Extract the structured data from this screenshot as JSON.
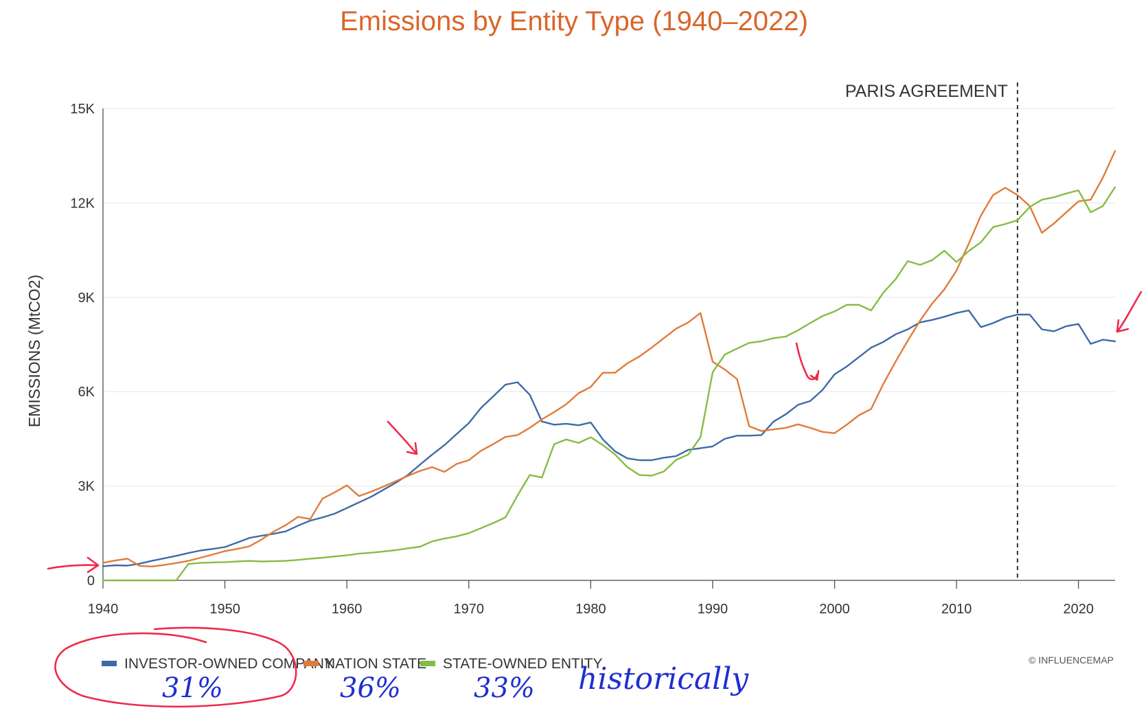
{
  "chart_data": {
    "type": "line",
    "title": "Emissions by Entity Type (1940–2022)",
    "xlabel": "",
    "ylabel": "EMISSIONS (MtCO2)",
    "xlim": [
      1940,
      2023
    ],
    "ylim": [
      0,
      15000
    ],
    "x_ticks": [
      1940,
      1950,
      1960,
      1970,
      1980,
      1990,
      2000,
      2010,
      2020
    ],
    "x_tick_labels": [
      "1940",
      "1950",
      "1960",
      "1970",
      "1980",
      "1990",
      "2000",
      "2010",
      "2020"
    ],
    "y_ticks": [
      0,
      3000,
      6000,
      9000,
      12000,
      15000
    ],
    "y_tick_labels": [
      "0",
      "3K",
      "6K",
      "9K",
      "12K",
      "15K"
    ],
    "grid": "horizontal",
    "legend_position": "bottom-left",
    "x": [
      1940,
      1941,
      1942,
      1943,
      1944,
      1945,
      1946,
      1947,
      1948,
      1949,
      1950,
      1951,
      1952,
      1953,
      1954,
      1955,
      1956,
      1957,
      1958,
      1959,
      1960,
      1961,
      1962,
      1963,
      1964,
      1965,
      1966,
      1967,
      1968,
      1969,
      1970,
      1971,
      1972,
      1973,
      1974,
      1975,
      1976,
      1977,
      1978,
      1979,
      1980,
      1981,
      1982,
      1983,
      1984,
      1985,
      1986,
      1987,
      1988,
      1989,
      1990,
      1991,
      1992,
      1993,
      1994,
      1995,
      1996,
      1997,
      1998,
      1999,
      2000,
      2001,
      2002,
      2003,
      2004,
      2005,
      2006,
      2007,
      2008,
      2009,
      2010,
      2011,
      2012,
      2013,
      2014,
      2015,
      2016,
      2017,
      2018,
      2019,
      2020,
      2021,
      2022,
      2023
    ],
    "series": [
      {
        "name": "INVESTOR-OWNED COMPANY",
        "color": "#3f6aa6",
        "values": [
          450,
          480,
          470,
          530,
          620,
          700,
          780,
          870,
          950,
          1000,
          1060,
          1200,
          1350,
          1420,
          1480,
          1560,
          1740,
          1900,
          2000,
          2120,
          2300,
          2480,
          2660,
          2880,
          3100,
          3350,
          3680,
          4000,
          4300,
          4650,
          5000,
          5480,
          5850,
          6220,
          6300,
          5900,
          5050,
          4950,
          4980,
          4930,
          5020,
          4480,
          4100,
          3880,
          3820,
          3820,
          3900,
          3950,
          4150,
          4200,
          4260,
          4500,
          4600,
          4600,
          4620,
          5050,
          5280,
          5580,
          5700,
          6050,
          6550,
          6800,
          7100,
          7400,
          7580,
          7820,
          7980,
          8200,
          8280,
          8380,
          8500,
          8580,
          8050,
          8180,
          8350,
          8450,
          8450,
          7980,
          7920,
          8080,
          8150,
          7520,
          7650,
          7600
        ]
      },
      {
        "name": "NATION STATE",
        "color": "#e07b39",
        "values": [
          560,
          630,
          690,
          460,
          440,
          490,
          550,
          620,
          720,
          820,
          930,
          1000,
          1080,
          1300,
          1550,
          1760,
          2020,
          1950,
          2600,
          2800,
          3020,
          2680,
          2820,
          2980,
          3150,
          3320,
          3480,
          3600,
          3450,
          3700,
          3820,
          4120,
          4330,
          4560,
          4620,
          4850,
          5120,
          5350,
          5600,
          5950,
          6150,
          6600,
          6600,
          6900,
          7120,
          7400,
          7700,
          8000,
          8200,
          8500,
          6950,
          6700,
          6400,
          4900,
          4750,
          4800,
          4850,
          4960,
          4850,
          4720,
          4680,
          4950,
          5250,
          5450,
          6250,
          6950,
          7620,
          8250,
          8800,
          9250,
          9850,
          10700,
          11600,
          12250,
          12480,
          12250,
          11900,
          11050,
          11350,
          11700,
          12050,
          12100,
          12800,
          13650
        ]
      },
      {
        "name": "STATE-OWNED ENTITY",
        "color": "#86bc44",
        "values": [
          0,
          0,
          0,
          0,
          0,
          0,
          0,
          520,
          560,
          570,
          580,
          600,
          620,
          600,
          610,
          620,
          650,
          690,
          720,
          760,
          800,
          850,
          880,
          920,
          960,
          1020,
          1070,
          1240,
          1330,
          1400,
          1500,
          1660,
          1820,
          2000,
          2700,
          3350,
          3270,
          4330,
          4480,
          4370,
          4550,
          4300,
          4000,
          3600,
          3350,
          3330,
          3460,
          3830,
          4000,
          4550,
          6620,
          7180,
          7370,
          7550,
          7600,
          7700,
          7750,
          7950,
          8180,
          8400,
          8550,
          8760,
          8760,
          8580,
          9150,
          9570,
          10150,
          10030,
          10180,
          10480,
          10120,
          10470,
          10750,
          11230,
          11330,
          11450,
          11870,
          12100,
          12180,
          12300,
          12400,
          11700,
          11900,
          12500
        ]
      }
    ],
    "annotations": {
      "reference_line": {
        "x": 2015,
        "label": "PARIS AGREEMENT"
      },
      "credit": "© INFLUENCEMAP",
      "handwritten": {
        "investor_pct": "31%",
        "nation_pct": "36%",
        "state_pct": "33%",
        "note": "historically"
      }
    }
  }
}
